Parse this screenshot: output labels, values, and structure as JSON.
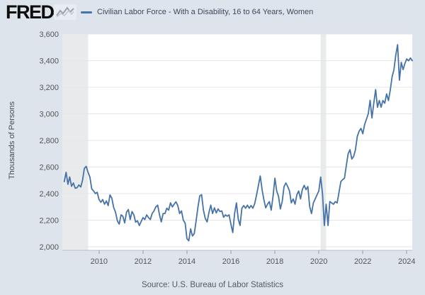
{
  "header": {
    "logo_text": "FRED",
    "logo_reg_mark": "®",
    "logo_icon": "line-chart-squiggle-icon",
    "legend": {
      "marker_color": "#4572a7",
      "label": "Civilian Labor Force - With a Disability, 16 to 64 Years, Women"
    }
  },
  "footer": {
    "source_text": "Source: U.S. Bureau of Labor Statistics"
  },
  "colors": {
    "page_background": "#dde4ec",
    "plot_background": "#ffffff",
    "gridline": "#e6e6e6",
    "recession_band": "#e9eaec",
    "axis_line": "#b8bec6",
    "tick_mark": "#999999",
    "axis_text": "#555555",
    "legend_text": "#3d4a5c",
    "series_line": "#4572a7",
    "logo_text": "#0d0d0d",
    "source_text": "#555b63"
  },
  "chart_data": {
    "type": "line",
    "title": "Civilian Labor Force - With a Disability, 16 to 64 Years, Women",
    "ylabel": "Thousands of Persons",
    "xlabel": "",
    "legend_position": "top",
    "grid": "horizontal",
    "ylim": [
      2000,
      3600
    ],
    "xlim_years": [
      2008.33,
      2024.25
    ],
    "y_ticks": [
      {
        "value": 2000,
        "label": "2,000"
      },
      {
        "value": 2200,
        "label": "2,200"
      },
      {
        "value": 2400,
        "label": "2,400"
      },
      {
        "value": 2600,
        "label": "2,600"
      },
      {
        "value": 2800,
        "label": "2,800"
      },
      {
        "value": 3000,
        "label": "3,000"
      },
      {
        "value": 3200,
        "label": "3,200"
      },
      {
        "value": 3400,
        "label": "3,400"
      },
      {
        "value": 3600,
        "label": "3,600"
      }
    ],
    "x_ticks": [
      {
        "value": 2010,
        "label": "2010"
      },
      {
        "value": 2012,
        "label": "2012"
      },
      {
        "value": 2014,
        "label": "2014"
      },
      {
        "value": 2016,
        "label": "2016"
      },
      {
        "value": 2018,
        "label": "2018"
      },
      {
        "value": 2020,
        "label": "2020"
      },
      {
        "value": 2022,
        "label": "2022"
      },
      {
        "value": 2024,
        "label": "2024"
      }
    ],
    "recession_bands": [
      {
        "start_year": 2008.33,
        "end_year": 2009.5
      },
      {
        "start_year": 2020.08,
        "end_year": 2020.33
      }
    ],
    "series": [
      {
        "name": "Civilian Labor Force - With a Disability, 16 to 64 Years, Women",
        "units": "Thousands of Persons",
        "frequency": "monthly",
        "start": "2008-06",
        "end": "2024-04",
        "color": "#4572a7",
        "values": [
          2490,
          2560,
          2470,
          2525,
          2455,
          2480,
          2440,
          2445,
          2465,
          2450,
          2500,
          2590,
          2605,
          2560,
          2525,
          2435,
          2420,
          2400,
          2410,
          2355,
          2335,
          2355,
          2320,
          2345,
          2310,
          2390,
          2365,
          2295,
          2260,
          2195,
          2170,
          2240,
          2230,
          2180,
          2260,
          2280,
          2205,
          2265,
          2240,
          2185,
          2195,
          2160,
          2190,
          2220,
          2205,
          2240,
          2220,
          2205,
          2250,
          2270,
          2300,
          2313,
          2240,
          2187,
          2250,
          2250,
          2290,
          2276,
          2330,
          2300,
          2320,
          2338,
          2310,
          2250,
          2270,
          2200,
          2178,
          2062,
          2045,
          2135,
          2081,
          2100,
          2196,
          2300,
          2383,
          2392,
          2276,
          2213,
          2187,
          2258,
          2313,
          2250,
          2293,
          2255,
          2285,
          2265,
          2270,
          2222,
          2240,
          2230,
          2240,
          2170,
          2107,
          2250,
          2330,
          2210,
          2160,
          2290,
          2310,
          2290,
          2313,
          2290,
          2310,
          2290,
          2325,
          2390,
          2460,
          2533,
          2430,
          2356,
          2293,
          2320,
          2340,
          2276,
          2380,
          2516,
          2420,
          2380,
          2285,
          2340,
          2453,
          2480,
          2453,
          2420,
          2330,
          2360,
          2320,
          2391,
          2420,
          2360,
          2430,
          2462,
          2430,
          2453,
          2303,
          2250,
          2330,
          2360,
          2390,
          2420,
          2525,
          2400,
          2160,
          2320,
          2160,
          2340,
          2330,
          2320,
          2340,
          2330,
          2410,
          2490,
          2505,
          2515,
          2610,
          2700,
          2730,
          2660,
          2680,
          2730,
          2830,
          2870,
          2890,
          2850,
          2920,
          2960,
          3000,
          3102,
          2969,
          3080,
          3182,
          3049,
          3100,
          3050,
          3100,
          3080,
          3150,
          3100,
          3180,
          3280,
          3330,
          3440,
          3520,
          3253,
          3387,
          3333,
          3380,
          3413,
          3399,
          3420,
          3400
        ]
      }
    ]
  }
}
